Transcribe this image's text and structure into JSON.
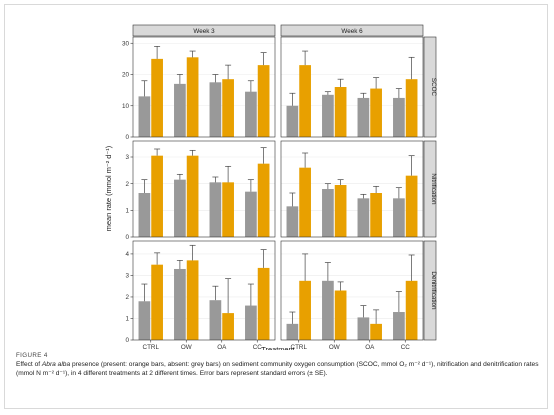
{
  "figure": {
    "label": "FIGURE 4",
    "caption": {
      "prefix": "Effect of ",
      "species": "Abra alba",
      "body": " presence (present: orange bars, absent: grey bars) on sediment community oxygen consumption (SCOC, mmol O₂ m⁻² d⁻¹), nitrification and denitrification rates (mmol N m⁻² d⁻¹), in 4 different treatments at 2 different times. Error bars represent standard errors (± SE)."
    }
  },
  "colors": {
    "present": "#e8a000",
    "absent": "#999999",
    "panel_bg": "#ffffff",
    "strip_bg": "#d9d9d9",
    "grid": "#ebebeb",
    "border": "#333333"
  },
  "chart_data": {
    "type": "bar",
    "xlabel": "Treatment",
    "ylabel": "mean rate (mmol m⁻² d⁻¹)",
    "categories": [
      "CTRL",
      "OW",
      "OA",
      "CC"
    ],
    "columns": [
      "Week 3",
      "Week 6"
    ],
    "legend": "none (colors explained in caption)",
    "series_colors": {
      "absent": "grey",
      "present": "orange"
    },
    "rows": [
      {
        "facet": "SCOC",
        "ylim": [
          0,
          32
        ],
        "yticks": [
          0,
          10,
          20,
          30
        ],
        "panels": [
          {
            "column": "Week 3",
            "absent": {
              "values": [
                13.0,
                17.0,
                17.5,
                14.5
              ],
              "se": [
                5.0,
                3.0,
                2.5,
                3.5
              ]
            },
            "present": {
              "values": [
                25.0,
                25.5,
                18.5,
                23.0
              ],
              "se": [
                4.0,
                2.0,
                4.5,
                4.0
              ]
            }
          },
          {
            "column": "Week 6",
            "absent": {
              "values": [
                10.0,
                13.5,
                12.5,
                12.5
              ],
              "se": [
                4.0,
                1.0,
                1.5,
                3.0
              ]
            },
            "present": {
              "values": [
                23.0,
                16.0,
                15.5,
                18.5
              ],
              "se": [
                4.5,
                2.5,
                3.5,
                7.0
              ]
            }
          }
        ]
      },
      {
        "facet": "Nitrification",
        "ylim": [
          0,
          3.6
        ],
        "yticks": [
          0,
          1,
          2,
          3
        ],
        "panels": [
          {
            "column": "Week 3",
            "absent": {
              "values": [
                1.65,
                2.15,
                2.05,
                1.7
              ],
              "se": [
                0.5,
                0.2,
                0.2,
                0.45
              ]
            },
            "present": {
              "values": [
                3.05,
                3.05,
                2.05,
                2.75
              ],
              "se": [
                0.25,
                0.2,
                0.6,
                0.6
              ]
            }
          },
          {
            "column": "Week 6",
            "absent": {
              "values": [
                1.15,
                1.8,
                1.45,
                1.45
              ],
              "se": [
                0.5,
                0.2,
                0.15,
                0.4
              ]
            },
            "present": {
              "values": [
                2.6,
                1.95,
                1.65,
                2.3
              ],
              "se": [
                0.55,
                0.2,
                0.25,
                0.75
              ]
            }
          }
        ]
      },
      {
        "facet": "Denitrification",
        "ylim": [
          0,
          4.6
        ],
        "yticks": [
          0,
          1,
          2,
          3,
          4
        ],
        "panels": [
          {
            "column": "Week 3",
            "absent": {
              "values": [
                1.8,
                3.3,
                1.85,
                1.6
              ],
              "se": [
                0.8,
                0.4,
                0.65,
                1.0
              ]
            },
            "present": {
              "values": [
                3.5,
                3.7,
                1.25,
                3.35
              ],
              "se": [
                0.55,
                0.7,
                1.6,
                0.85
              ]
            }
          },
          {
            "column": "Week 6",
            "absent": {
              "values": [
                0.75,
                2.75,
                1.05,
                1.3
              ],
              "se": [
                0.55,
                0.85,
                0.55,
                0.95
              ]
            },
            "present": {
              "values": [
                2.75,
                2.3,
                0.75,
                2.75
              ],
              "se": [
                1.25,
                0.4,
                0.65,
                1.2
              ]
            }
          }
        ]
      }
    ]
  }
}
